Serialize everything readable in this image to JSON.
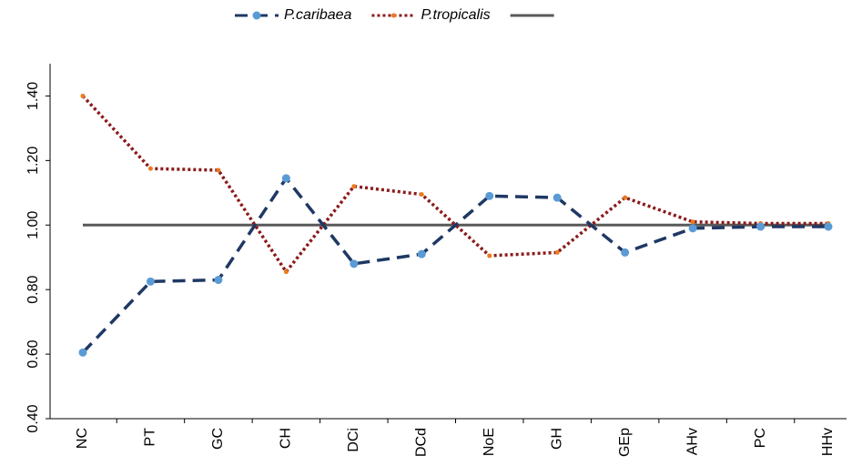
{
  "chart_data": {
    "type": "line",
    "categories": [
      "NC",
      "PT",
      "GC",
      "CH",
      "DCi",
      "DCd",
      "NoE",
      "GH",
      "GEp",
      "AHv",
      "PC",
      "HHv"
    ],
    "series": [
      {
        "name": "P.caribaea",
        "color": "#1f3864",
        "marker_color": "#5b9bd5",
        "dash": "dashed",
        "values": [
          0.605,
          0.825,
          0.83,
          1.145,
          0.88,
          0.91,
          1.09,
          1.085,
          0.915,
          0.99,
          0.995,
          0.995
        ]
      },
      {
        "name": "P.tropicalis",
        "color": "#8b1a1a",
        "marker_color": "#e97b1e",
        "dash": "dotted",
        "values": [
          1.4,
          1.175,
          1.17,
          0.855,
          1.12,
          1.095,
          0.905,
          0.915,
          1.085,
          1.01,
          1.005,
          1.005
        ]
      },
      {
        "color": "#595959",
        "dash": "solid",
        "values": [
          1,
          1,
          1,
          1,
          1,
          1,
          1,
          1,
          1,
          1,
          1,
          1
        ]
      }
    ],
    "ylim": [
      0.4,
      1.5
    ],
    "yticks": [
      {
        "value": 0.4,
        "label": "0.40"
      },
      {
        "value": 0.6,
        "label": "0.60"
      },
      {
        "value": 0.8,
        "label": "0.80"
      },
      {
        "value": 1.0,
        "label": "1.00"
      },
      {
        "value": 1.2,
        "label": "1.20"
      },
      {
        "value": 1.4,
        "label": "1.40"
      }
    ],
    "grid": false,
    "legend": "top"
  }
}
